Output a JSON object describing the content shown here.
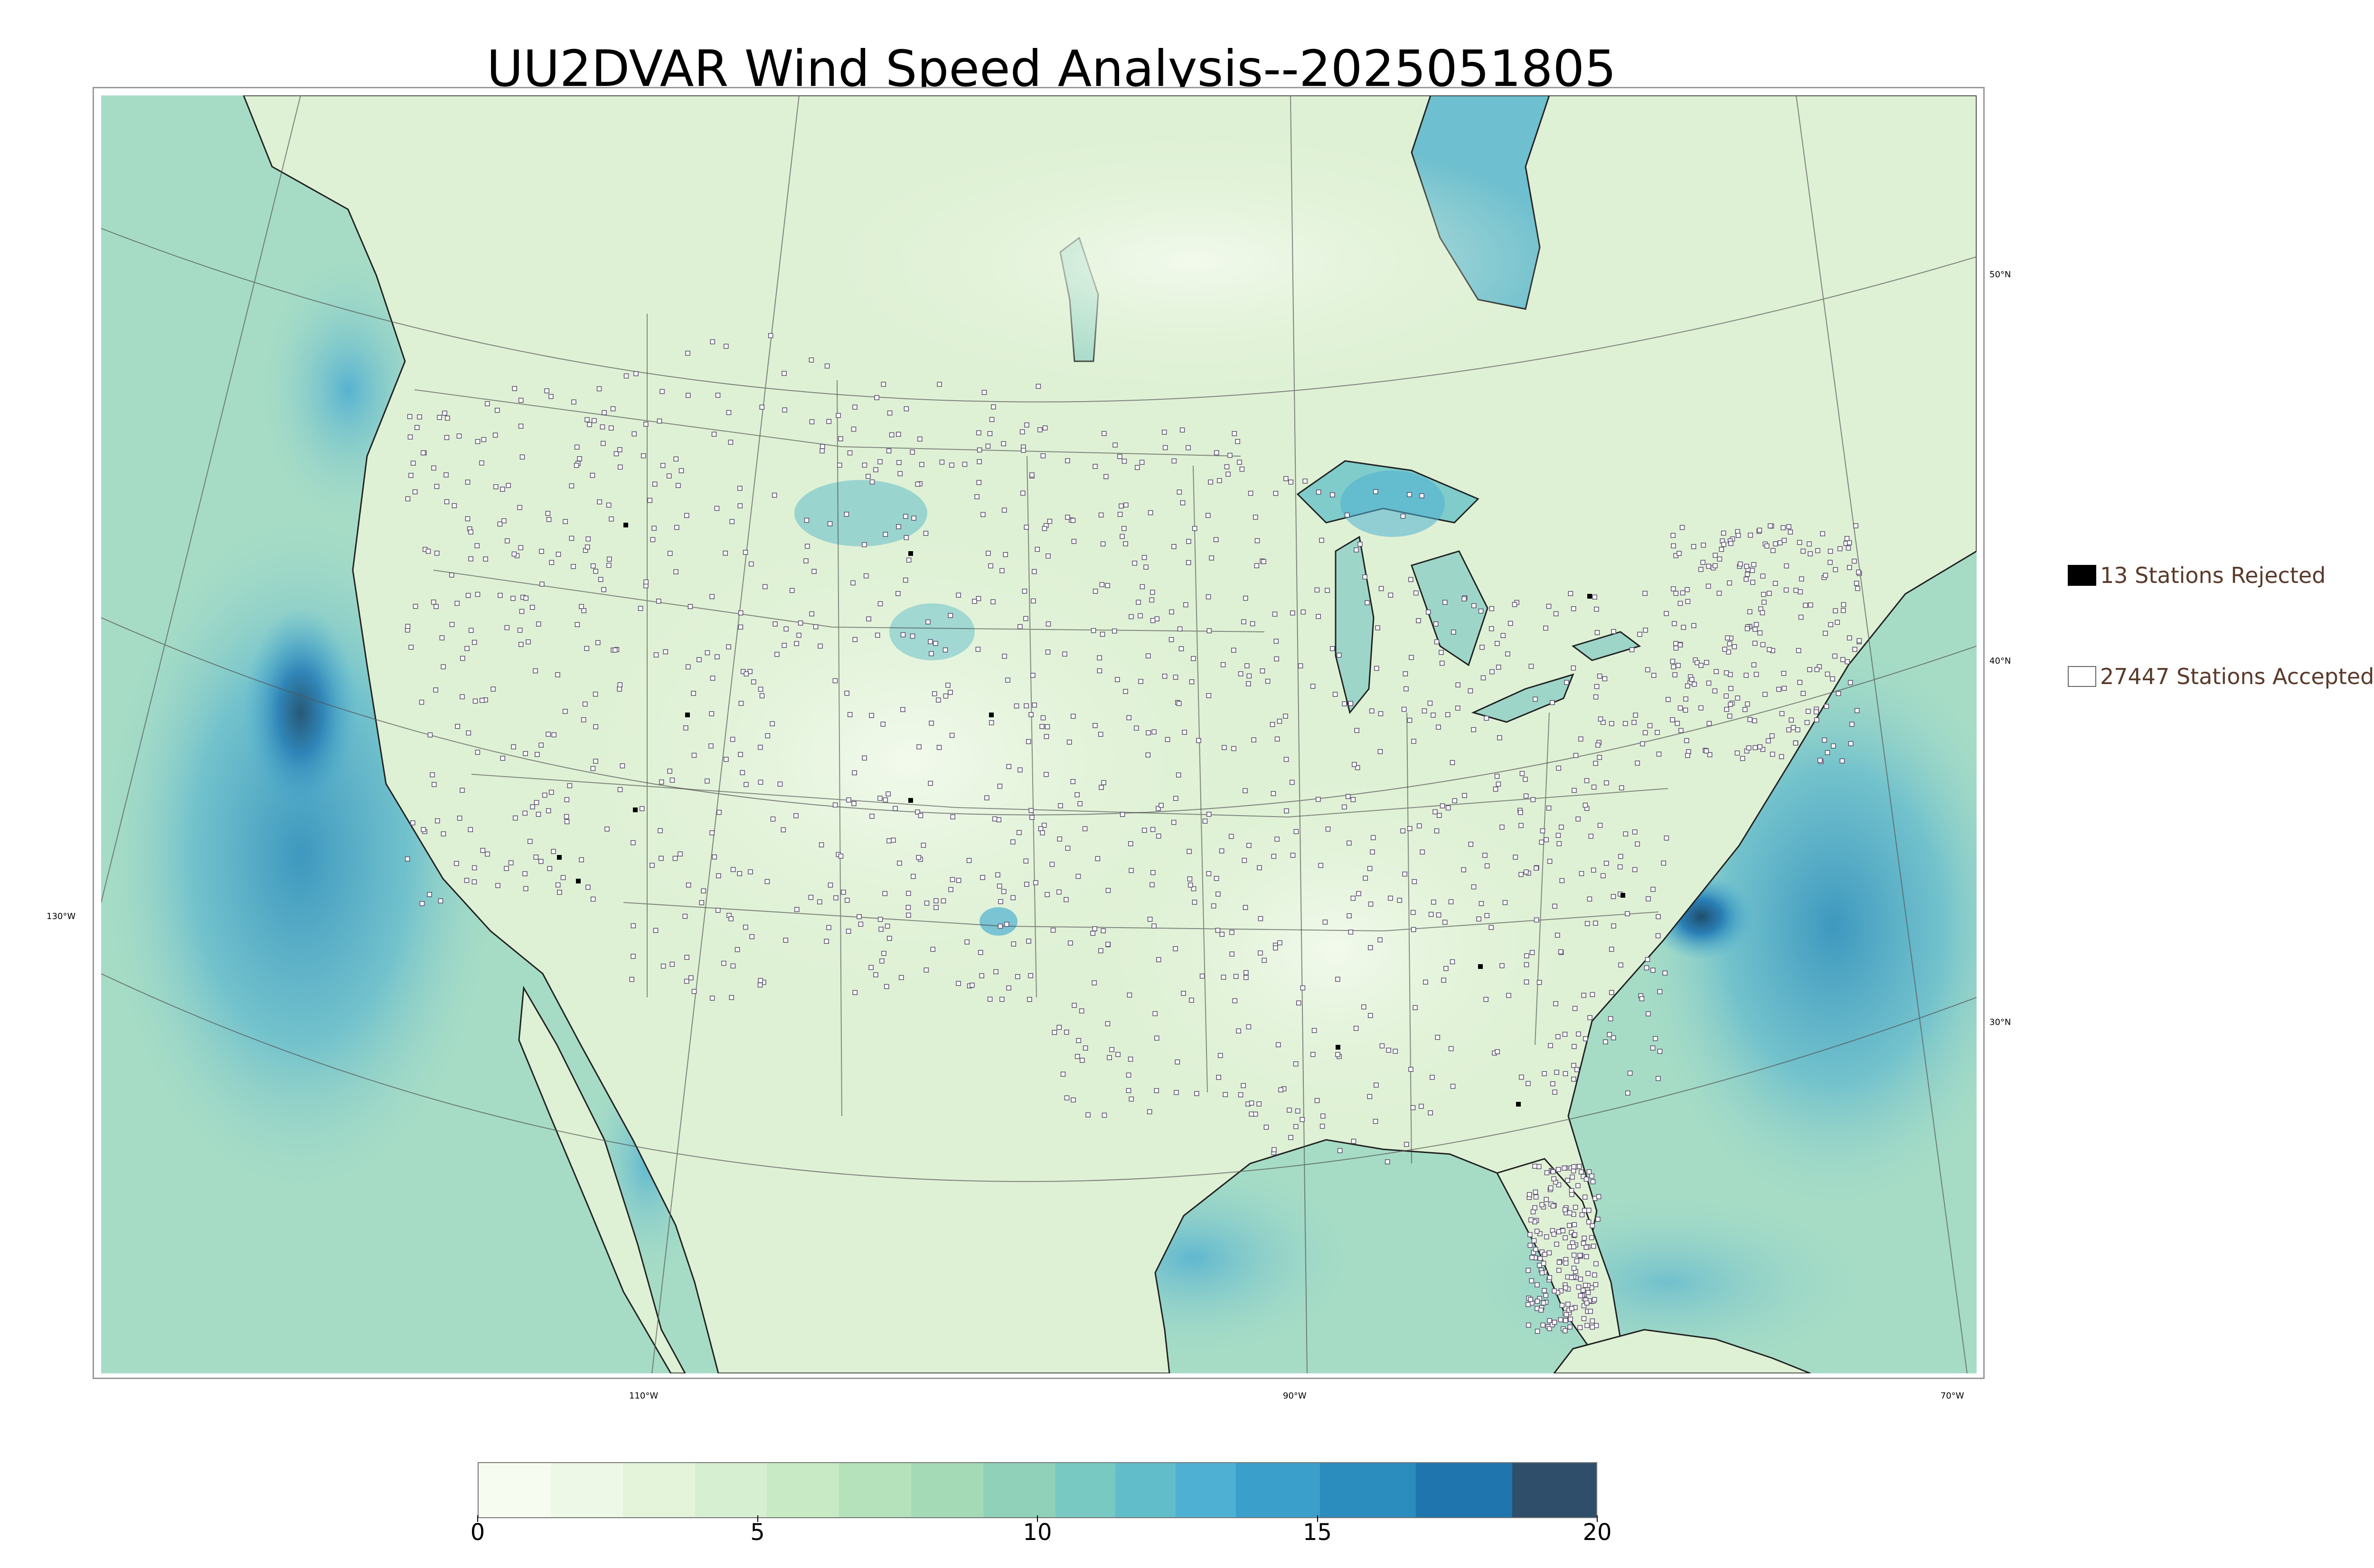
{
  "title": "UU2DVAR Wind Speed Analysis--2025051805",
  "legend": {
    "rejected": "13 Stations Rejected",
    "accepted": "27447 Stations Accepted"
  },
  "graticule": {
    "lat_labels": [
      "50°N",
      "40°N",
      "30°N"
    ],
    "lon_labels": [
      "130°W",
      "110°W",
      "90°W",
      "70°W"
    ]
  },
  "colorbar": {
    "min": 0,
    "max": 20,
    "tick_labels": [
      "0",
      "5",
      "10",
      "15",
      "20"
    ],
    "colors": [
      "#f7fcf0",
      "#eef8e6",
      "#e3f4db",
      "#d6efd0",
      "#c8eac4",
      "#b5e2bb",
      "#a4dbb6",
      "#8fd2b9",
      "#78c9c2",
      "#62bdcb",
      "#4eb1d3",
      "#3b9fcb",
      "#2b8cbe",
      "#1f75ad",
      "#2f4e6a"
    ]
  },
  "colors": {
    "ocean": "#9dd6c8",
    "ocean_deep": "#4ba6d1",
    "land": "#e0f2d7",
    "station_border": "#5b4e6e",
    "rejected": "#000000"
  }
}
